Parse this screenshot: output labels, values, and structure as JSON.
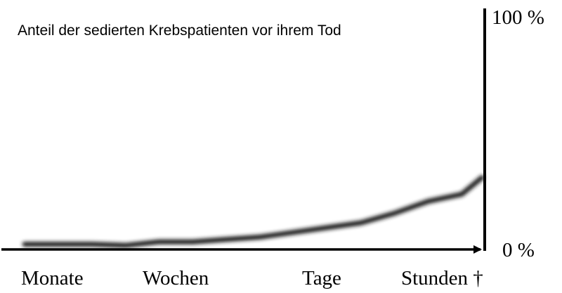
{
  "chart_data": {
    "type": "line",
    "title": "Anteil der sedierten Krebspatienten vor ihrem Tod",
    "categories": [
      "Monate",
      "Wochen",
      "Tage",
      "Stunden †"
    ],
    "y_tick_labels": {
      "top": "100 %",
      "bottom": "0 %"
    },
    "ylim": [
      0,
      100
    ],
    "grid": false,
    "legend": "none",
    "colors": {
      "line": "#1a1a1a",
      "axis": "#000000"
    },
    "series": [
      {
        "x": [
          0,
          0.25,
          0.5,
          0.75,
          1.0,
          1.25,
          1.5,
          1.75,
          2.0,
          2.25,
          2.5,
          2.75,
          3.0,
          3.25,
          3.4
        ],
        "values": [
          1,
          1,
          1,
          0.5,
          2,
          2,
          3,
          4,
          6,
          8,
          10,
          14,
          19,
          22,
          29
        ]
      }
    ]
  }
}
